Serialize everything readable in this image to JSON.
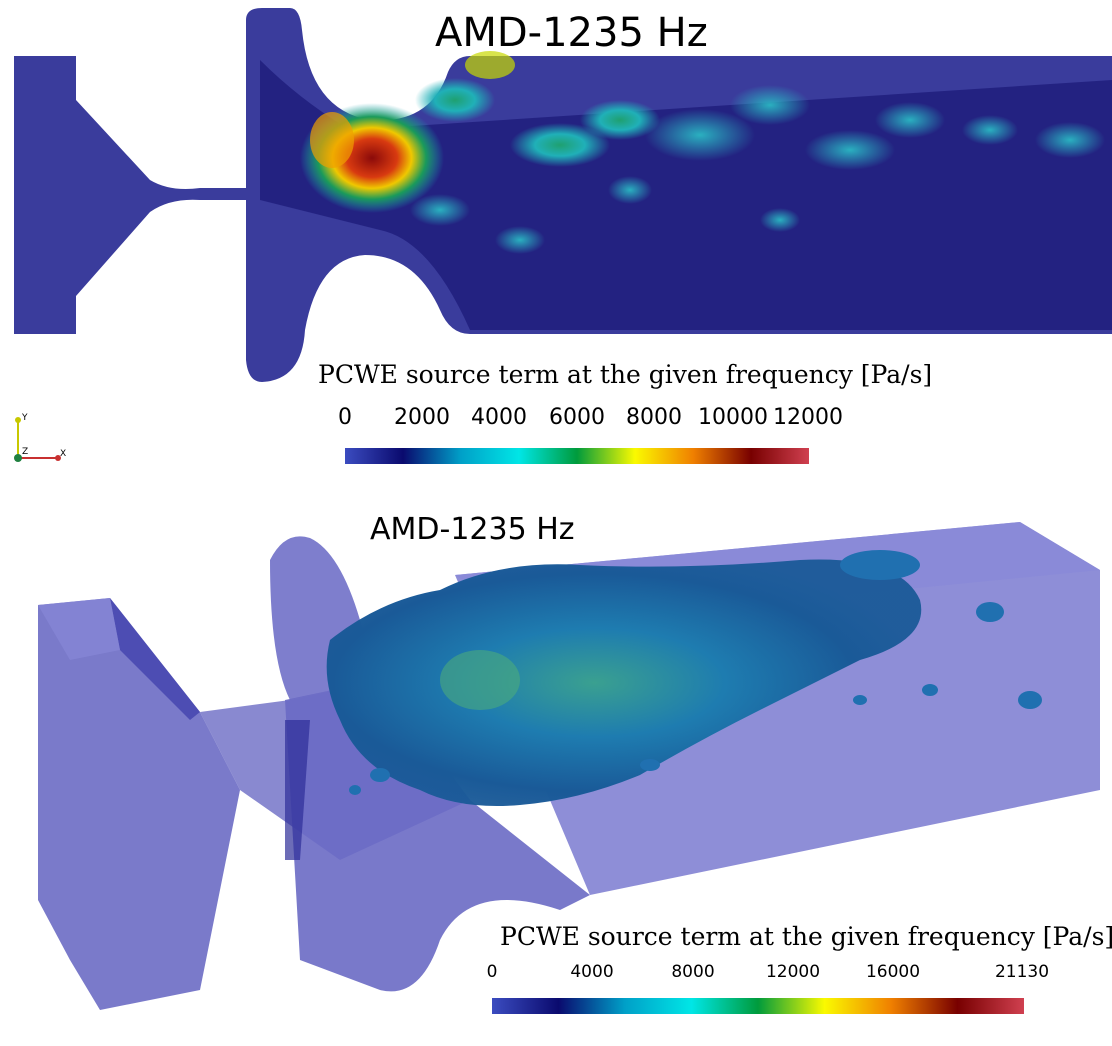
{
  "top_panel": {
    "title": "AMD-1235 Hz",
    "colorbar": {
      "title": "PCWE source term at the given frequency [Pa/s]",
      "ticks": [
        "0",
        "2000",
        "4000",
        "6000",
        "8000",
        "10000",
        "12000"
      ],
      "min": 0,
      "max": 12000
    }
  },
  "bottom_panel": {
    "title": "AMD-1235 Hz",
    "colorbar": {
      "title": "PCWE source term at the given frequency [Pa/s]",
      "ticks": [
        "0",
        "4000",
        "8000",
        "12000",
        "16000",
        "21130"
      ],
      "min": 0,
      "max": 21130
    }
  },
  "axes_triad": {
    "y": "Y",
    "z": "Z",
    "x": "X"
  },
  "colors": {
    "domain_blue": "#3c3c9e",
    "colormap": [
      "#3b4cc0",
      "#0a0a6e",
      "#00a0c8",
      "#00e6e6",
      "#009b3c",
      "#fafa00",
      "#f08000",
      "#780000",
      "#d04050"
    ]
  }
}
